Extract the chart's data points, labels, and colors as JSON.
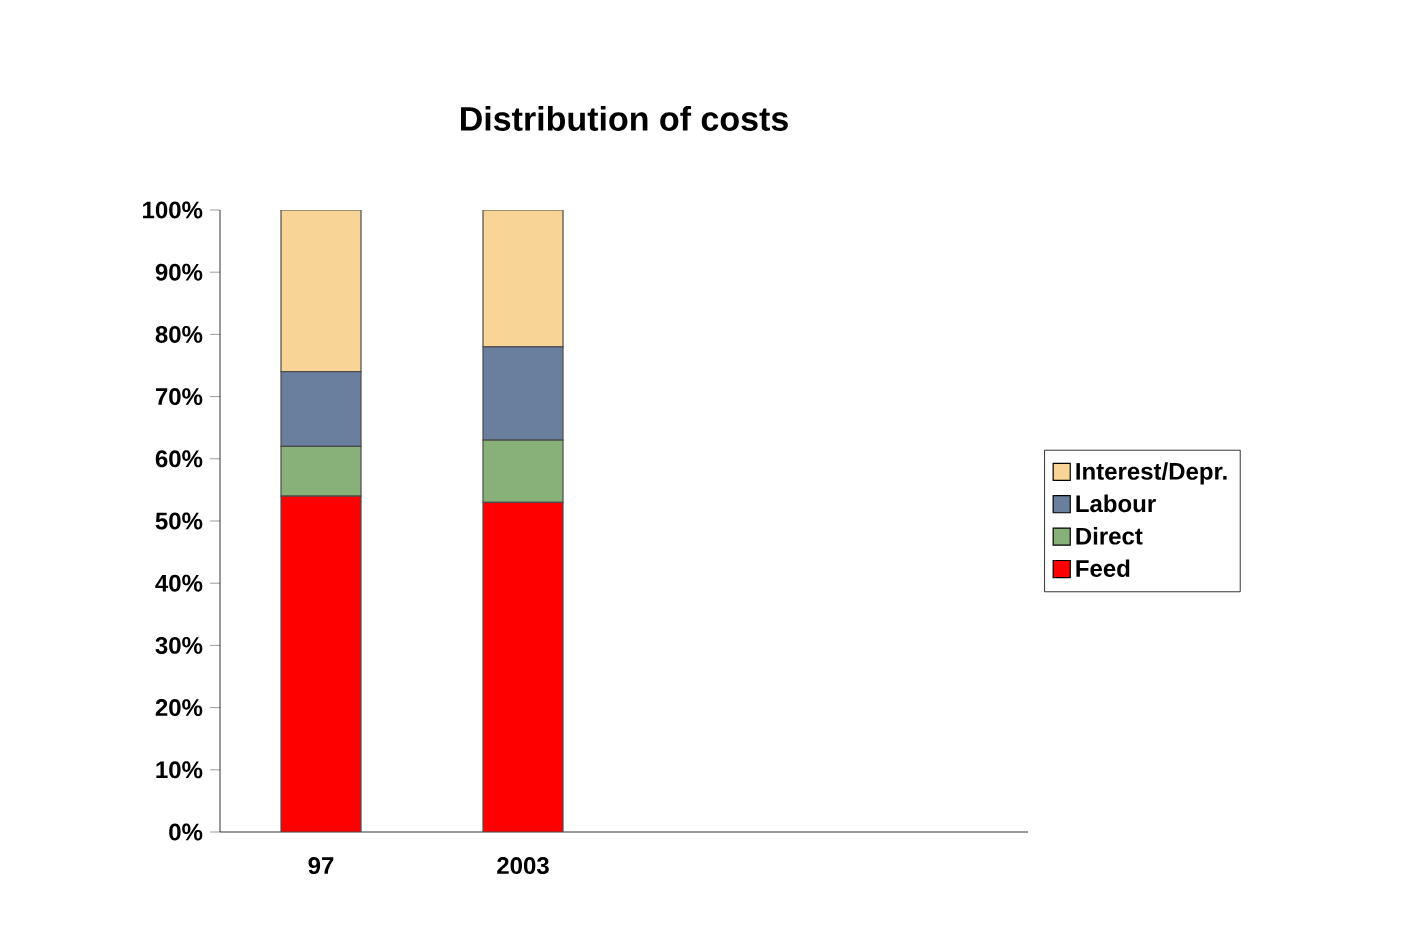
{
  "chart_data": {
    "type": "bar",
    "title": "Distribution of costs",
    "stacked": true,
    "categories": [
      "97",
      "2003",
      null,
      null
    ],
    "series": [
      {
        "name": "Feed",
        "color": "#ff0000",
        "values": [
          54,
          53,
          null,
          null
        ]
      },
      {
        "name": "Direct",
        "color": "#88b17a",
        "values": [
          8,
          10,
          null,
          null
        ]
      },
      {
        "name": "Labour",
        "color": "#6a7f9e",
        "values": [
          12,
          15,
          null,
          null
        ]
      },
      {
        "name": "Interest/Depr.",
        "color": "#f8d496",
        "values": [
          26,
          22,
          null,
          null
        ]
      }
    ],
    "ylim": [
      0,
      100
    ],
    "yticks": [
      {
        "value": 0,
        "label": "0%"
      },
      {
        "value": 10,
        "label": "10%"
      },
      {
        "value": 20,
        "label": "20%"
      },
      {
        "value": 30,
        "label": "30%"
      },
      {
        "value": 40,
        "label": "40%"
      },
      {
        "value": 50,
        "label": "50%"
      },
      {
        "value": 60,
        "label": "60%"
      },
      {
        "value": 70,
        "label": "70%"
      },
      {
        "value": 80,
        "label": "80%"
      },
      {
        "value": 90,
        "label": "90%"
      },
      {
        "value": 100,
        "label": "100%"
      }
    ],
    "grid": false,
    "legend": "right"
  }
}
